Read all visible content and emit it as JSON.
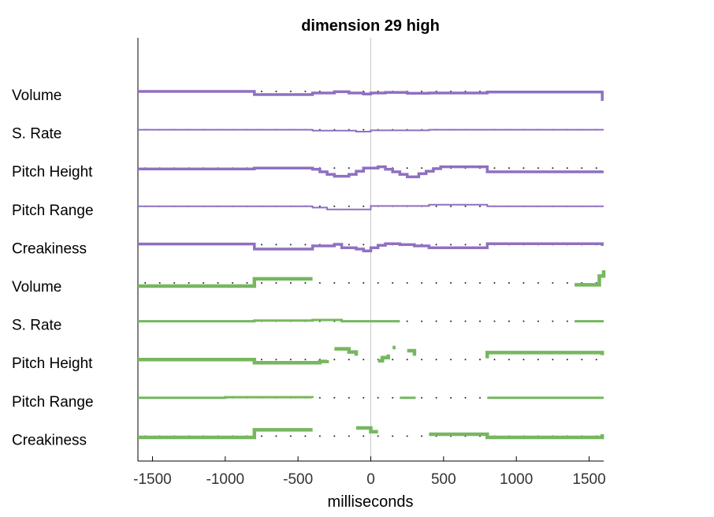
{
  "chart_data": {
    "type": "line",
    "title": "dimension 29 high",
    "xlabel": "milliseconds",
    "ylabel": "",
    "xlim": [
      -1600,
      1600
    ],
    "x_ticks": [
      -1500,
      -1000,
      -500,
      0,
      500,
      1000,
      1500
    ],
    "x_tick_labels": [
      "-1500",
      "-1000",
      "-500",
      "0",
      "500",
      "1000",
      "1500"
    ],
    "reference_line_x": 0,
    "grid": false,
    "colors": {
      "purple": "#8f70c0",
      "green": "#77b75f",
      "zero_line": "#c8c8c8",
      "axis": "#000000"
    },
    "groups": [
      {
        "name": "purple",
        "color": "#8f70c0"
      },
      {
        "name": "green",
        "color": "#77b75f"
      }
    ],
    "series": [
      {
        "label": "Volume",
        "group": "purple",
        "dash": false,
        "points": [
          [
            -1600,
            0
          ],
          [
            -800,
            0
          ],
          [
            -800,
            -1
          ],
          [
            -400,
            -1
          ],
          [
            -400,
            -0.5
          ],
          [
            -250,
            -0.5
          ],
          [
            -250,
            -0.1
          ],
          [
            -150,
            -0.1
          ],
          [
            -150,
            -0.5
          ],
          [
            -50,
            -0.5
          ],
          [
            -50,
            -0.8
          ],
          [
            0,
            -0.8
          ],
          [
            0,
            -0.5
          ],
          [
            100,
            -0.5
          ],
          [
            100,
            -0.3
          ],
          [
            250,
            -0.3
          ],
          [
            250,
            -0.6
          ],
          [
            400,
            -0.6
          ],
          [
            400,
            -0.5
          ],
          [
            800,
            -0.5
          ],
          [
            800,
            -0.2
          ],
          [
            1590,
            -0.2
          ],
          [
            1590,
            -3
          ]
        ]
      },
      {
        "label": "S. Rate",
        "group": "purple",
        "dash": false,
        "points": [
          [
            -1600,
            0
          ],
          [
            -400,
            0
          ],
          [
            -400,
            -0.3
          ],
          [
            -100,
            -0.3
          ],
          [
            -100,
            -0.6
          ],
          [
            0,
            -0.6
          ],
          [
            0,
            -0.2
          ],
          [
            400,
            -0.2
          ],
          [
            400,
            0
          ],
          [
            1600,
            0
          ]
        ]
      },
      {
        "label": "Pitch Height",
        "group": "purple",
        "dash": false,
        "points": [
          [
            -1600,
            -0.3
          ],
          [
            -800,
            -0.3
          ],
          [
            -800,
            0
          ],
          [
            -400,
            0
          ],
          [
            -400,
            -0.4
          ],
          [
            -350,
            -0.4
          ],
          [
            -350,
            -1.2
          ],
          [
            -300,
            -1.2
          ],
          [
            -300,
            -2
          ],
          [
            -250,
            -2
          ],
          [
            -250,
            -2.6
          ],
          [
            -150,
            -2.6
          ],
          [
            -150,
            -2
          ],
          [
            -100,
            -2
          ],
          [
            -100,
            -1
          ],
          [
            -50,
            -1
          ],
          [
            -50,
            0
          ],
          [
            50,
            0
          ],
          [
            50,
            0.4
          ],
          [
            50,
            0.4
          ],
          [
            100,
            0.4
          ],
          [
            100,
            -0.4
          ],
          [
            150,
            -0.4
          ],
          [
            150,
            -1.2
          ],
          [
            200,
            -1.2
          ],
          [
            200,
            -2
          ],
          [
            250,
            -2
          ],
          [
            250,
            -2.8
          ],
          [
            330,
            -2.8
          ],
          [
            330,
            -1.8
          ],
          [
            380,
            -1.8
          ],
          [
            380,
            -1
          ],
          [
            430,
            -1
          ],
          [
            430,
            -0.2
          ],
          [
            480,
            -0.2
          ],
          [
            480,
            0.4
          ],
          [
            800,
            0.4
          ],
          [
            800,
            -1.2
          ],
          [
            1590,
            -1.2
          ],
          [
            1590,
            -0.8
          ]
        ]
      },
      {
        "label": "Pitch Range",
        "group": "purple",
        "dash": false,
        "points": [
          [
            -1600,
            0
          ],
          [
            -400,
            0
          ],
          [
            -400,
            -0.4
          ],
          [
            -400,
            -0.4
          ],
          [
            -300,
            -0.4
          ],
          [
            -300,
            -1
          ],
          [
            0,
            -1
          ],
          [
            0,
            0.1
          ],
          [
            0,
            0.1
          ],
          [
            400,
            0.1
          ],
          [
            400,
            0.5
          ],
          [
            800,
            0.5
          ],
          [
            800,
            0
          ],
          [
            1600,
            0
          ]
        ]
      },
      {
        "label": "Creakiness",
        "group": "purple",
        "dash": false,
        "points": [
          [
            -1600,
            0.2
          ],
          [
            -800,
            0.2
          ],
          [
            -800,
            -1.4
          ],
          [
            -400,
            -1.4
          ],
          [
            -400,
            -0.4
          ],
          [
            -250,
            -0.4
          ],
          [
            -250,
            0.1
          ],
          [
            -200,
            0.1
          ],
          [
            -200,
            -1
          ],
          [
            -100,
            -1
          ],
          [
            -100,
            -1.4
          ],
          [
            -50,
            -1.4
          ],
          [
            -50,
            -2
          ],
          [
            0,
            -2
          ],
          [
            0,
            -1
          ],
          [
            50,
            -1
          ],
          [
            50,
            -0.2
          ],
          [
            100,
            -0.2
          ],
          [
            100,
            0.3
          ],
          [
            200,
            0.3
          ],
          [
            200,
            0
          ],
          [
            300,
            0
          ],
          [
            300,
            -0.4
          ],
          [
            400,
            -0.4
          ],
          [
            400,
            -1
          ],
          [
            800,
            -1
          ],
          [
            800,
            0.3
          ],
          [
            1590,
            0.3
          ],
          [
            1590,
            -0.4
          ]
        ]
      },
      {
        "label": "Volume",
        "group": "green",
        "dash": true,
        "segments": [
          [
            [
              -1600,
              -1
            ],
            [
              -800,
              -1
            ],
            [
              -800,
              1.3
            ],
            [
              -400,
              1.3
            ]
          ],
          [
            [
              1400,
              -0.6
            ],
            [
              1570,
              -0.6
            ],
            [
              1570,
              2.2
            ],
            [
              1600,
              2.2
            ],
            [
              1600,
              4
            ]
          ]
        ]
      },
      {
        "label": "S. Rate",
        "group": "green",
        "dash": true,
        "segments": [
          [
            [
              -1600,
              0
            ],
            [
              -800,
              0
            ],
            [
              -800,
              0.2
            ],
            [
              -400,
              0.2
            ],
            [
              -400,
              0.4
            ],
            [
              -200,
              0.4
            ],
            [
              -200,
              0
            ],
            [
              200,
              0
            ]
          ],
          [
            [
              1400,
              0
            ],
            [
              1600,
              0
            ]
          ]
        ]
      },
      {
        "label": "Pitch Height",
        "group": "green",
        "dash": true,
        "segments": [
          [
            [
              -1600,
              0
            ],
            [
              -800,
              0
            ],
            [
              -800,
              -1
            ],
            [
              -350,
              -1
            ],
            [
              -350,
              -0.6
            ],
            [
              -300,
              -0.6
            ],
            [
              -300,
              -0.2
            ]
          ],
          [
            [
              -250,
              3.4
            ],
            [
              -150,
              3.4
            ],
            [
              -150,
              2.4
            ],
            [
              -100,
              2.4
            ],
            [
              -100,
              1.2
            ]
          ],
          [
            [
              50,
              -0.4
            ],
            [
              80,
              -0.4
            ],
            [
              80,
              0.6
            ],
            [
              120,
              0.6
            ],
            [
              120,
              1.6
            ]
          ],
          [
            [
              150,
              3.8
            ],
            [
              170,
              3.8
            ]
          ],
          [
            [
              250,
              2.8
            ],
            [
              300,
              2.8
            ],
            [
              300,
              1.2
            ]
          ],
          [
            [
              800,
              0.4
            ],
            [
              800,
              2.2
            ],
            [
              1590,
              2.2
            ],
            [
              1590,
              1.4
            ]
          ]
        ]
      },
      {
        "label": "Pitch Range",
        "group": "green",
        "dash": true,
        "segments": [
          [
            [
              -1600,
              0
            ],
            [
              -1000,
              0
            ],
            [
              -1000,
              0.2
            ],
            [
              -400,
              0.2
            ],
            [
              -400,
              0
            ]
          ],
          [
            [
              200,
              0
            ],
            [
              300,
              0
            ],
            [
              300,
              0.4
            ]
          ],
          [
            [
              800,
              0
            ],
            [
              1600,
              0
            ]
          ]
        ]
      },
      {
        "label": "Creakiness",
        "group": "green",
        "dash": true,
        "segments": [
          [
            [
              -1600,
              -0.4
            ],
            [
              -800,
              -0.4
            ],
            [
              -800,
              2
            ],
            [
              -400,
              2
            ]
          ],
          [
            [
              -100,
              2.6
            ],
            [
              0,
              2.6
            ],
            [
              0,
              1.4
            ],
            [
              50,
              1.4
            ]
          ],
          [
            [
              400,
              0.6
            ],
            [
              800,
              0.6
            ],
            [
              800,
              -0.4
            ],
            [
              1590,
              -0.4
            ],
            [
              1590,
              0.6
            ]
          ]
        ]
      }
    ]
  }
}
